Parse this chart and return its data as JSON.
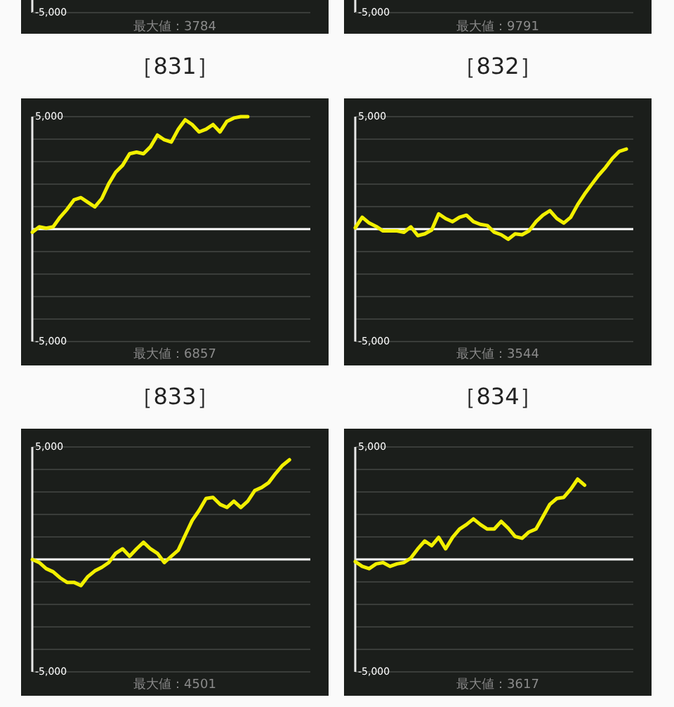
{
  "chart_data": [
    {
      "type": "other",
      "annotations": [
        "-5,000",
        "最大値：3784"
      ]
    },
    {
      "type": "other",
      "annotations": [
        "-5,000",
        "最大値：9791"
      ]
    },
    {
      "type": "line",
      "title": "［831］",
      "categories": [
        null,
        null,
        null,
        null,
        null,
        null,
        null,
        null,
        null,
        null,
        null,
        null,
        null,
        null,
        null,
        null,
        null,
        null,
        null,
        null,
        null,
        null,
        null,
        null,
        null,
        null,
        null,
        null,
        null,
        null,
        null,
        null,
        null,
        null,
        null,
        null,
        null,
        null,
        null,
        null,
        null
      ],
      "series": [
        {
          "color": "#f2f000",
          "values": [
            -140,
            100,
            40,
            100,
            530,
            880,
            1300,
            1400,
            1190,
            990,
            1360,
            2020,
            2530,
            2840,
            3350,
            3420,
            3350,
            3660,
            4180,
            3970,
            3870,
            4440,
            4860,
            4650,
            4320,
            4440,
            4650,
            4320,
            4790,
            4940,
            5000,
            5000,
            null,
            null,
            null,
            null,
            null,
            null,
            null,
            null,
            null
          ]
        }
      ],
      "ylim": [
        -5000,
        5000
      ],
      "yticks": [
        {
          "value": -5000,
          "label": "-5,000"
        },
        {
          "value": -4000,
          "label": null
        },
        {
          "value": -3000,
          "label": null
        },
        {
          "value": -2000,
          "label": null
        },
        {
          "value": -1000,
          "label": null
        },
        {
          "value": 0,
          "label": null
        },
        {
          "value": 1000,
          "label": null
        },
        {
          "value": 2000,
          "label": null
        },
        {
          "value": 3000,
          "label": null
        },
        {
          "value": 4000,
          "label": null
        },
        {
          "value": 5000,
          "label": "5,000"
        }
      ],
      "grid": "y",
      "tick_labels": "y",
      "ref_lines": [
        {
          "axis": "y",
          "value": 0,
          "color": "#ffffff"
        }
      ],
      "annotations": [
        "最大値：6857"
      ]
    },
    {
      "type": "line",
      "title": "［832］",
      "categories": [
        null,
        null,
        null,
        null,
        null,
        null,
        null,
        null,
        null,
        null,
        null,
        null,
        null,
        null,
        null,
        null,
        null,
        null,
        null,
        null,
        null,
        null,
        null,
        null,
        null,
        null,
        null,
        null,
        null,
        null,
        null,
        null,
        null,
        null,
        null,
        null,
        null,
        null,
        null,
        null,
        null
      ],
      "series": [
        {
          "color": "#f2f000",
          "values": [
            60,
            530,
            270,
            120,
            -80,
            -80,
            -80,
            -140,
            100,
            -290,
            -210,
            -40,
            680,
            470,
            330,
            530,
            620,
            330,
            210,
            160,
            -140,
            -250,
            -450,
            -210,
            -250,
            -80,
            330,
            620,
            820,
            470,
            270,
            530,
            1090,
            1560,
            1980,
            2390,
            2740,
            3150,
            3460,
            3560,
            null
          ]
        }
      ],
      "ylim": [
        -5000,
        5000
      ],
      "yticks": [
        {
          "value": -5000,
          "label": "-5,000"
        },
        {
          "value": -4000,
          "label": null
        },
        {
          "value": -3000,
          "label": null
        },
        {
          "value": -2000,
          "label": null
        },
        {
          "value": -1000,
          "label": null
        },
        {
          "value": 0,
          "label": null
        },
        {
          "value": 1000,
          "label": null
        },
        {
          "value": 2000,
          "label": null
        },
        {
          "value": 3000,
          "label": null
        },
        {
          "value": 4000,
          "label": null
        },
        {
          "value": 5000,
          "label": "5,000"
        }
      ],
      "grid": "y",
      "tick_labels": "y",
      "ref_lines": [
        {
          "axis": "y",
          "value": 0,
          "color": "#ffffff"
        }
      ],
      "annotations": [
        "最大値：3544"
      ]
    },
    {
      "type": "line",
      "title": "［833］",
      "categories": [
        null,
        null,
        null,
        null,
        null,
        null,
        null,
        null,
        null,
        null,
        null,
        null,
        null,
        null,
        null,
        null,
        null,
        null,
        null,
        null,
        null,
        null,
        null,
        null,
        null,
        null,
        null,
        null,
        null,
        null,
        null,
        null,
        null,
        null,
        null,
        null,
        null,
        null,
        null,
        null,
        null
      ],
      "series": [
        {
          "color": "#f2f000",
          "values": [
            0,
            -140,
            -410,
            -550,
            -820,
            -1020,
            -1020,
            -1160,
            -760,
            -510,
            -350,
            -140,
            270,
            470,
            140,
            470,
            760,
            470,
            270,
            -140,
            140,
            410,
            1080,
            1730,
            2180,
            2710,
            2760,
            2450,
            2310,
            2590,
            2310,
            2590,
            3060,
            3200,
            3410,
            3820,
            4180,
            4430,
            null,
            null,
            null
          ]
        }
      ],
      "ylim": [
        -5000,
        5000
      ],
      "yticks": [
        {
          "value": -5000,
          "label": "-5,000"
        },
        {
          "value": -4000,
          "label": null
        },
        {
          "value": -3000,
          "label": null
        },
        {
          "value": -2000,
          "label": null
        },
        {
          "value": -1000,
          "label": null
        },
        {
          "value": 0,
          "label": null
        },
        {
          "value": 1000,
          "label": null
        },
        {
          "value": 2000,
          "label": null
        },
        {
          "value": 3000,
          "label": null
        },
        {
          "value": 4000,
          "label": null
        },
        {
          "value": 5000,
          "label": "5,000"
        }
      ],
      "grid": "y",
      "tick_labels": "y",
      "ref_lines": [
        {
          "axis": "y",
          "value": 0,
          "color": "#ffffff"
        }
      ],
      "annotations": [
        "最大値：4501"
      ]
    },
    {
      "type": "line",
      "title": "［834］",
      "categories": [
        null,
        null,
        null,
        null,
        null,
        null,
        null,
        null,
        null,
        null,
        null,
        null,
        null,
        null,
        null,
        null,
        null,
        null,
        null,
        null,
        null,
        null,
        null,
        null,
        null,
        null,
        null,
        null,
        null,
        null,
        null,
        null,
        null,
        null,
        null,
        null,
        null,
        null,
        null,
        null,
        null
      ],
      "series": [
        {
          "color": "#f2f000",
          "values": [
            -100,
            -310,
            -410,
            -200,
            -140,
            -310,
            -200,
            -140,
            60,
            470,
            820,
            610,
            980,
            470,
            980,
            1350,
            1550,
            1800,
            1550,
            1350,
            1350,
            1690,
            1390,
            1020,
            940,
            1220,
            1350,
            1900,
            2450,
            2710,
            2760,
            3120,
            3570,
            3300,
            null,
            null,
            null,
            null,
            null,
            null,
            null
          ]
        }
      ],
      "ylim": [
        -5000,
        5000
      ],
      "yticks": [
        {
          "value": -5000,
          "label": "-5,000"
        },
        {
          "value": -4000,
          "label": null
        },
        {
          "value": -3000,
          "label": null
        },
        {
          "value": -2000,
          "label": null
        },
        {
          "value": -1000,
          "label": null
        },
        {
          "value": 0,
          "label": null
        },
        {
          "value": 1000,
          "label": null
        },
        {
          "value": 2000,
          "label": null
        },
        {
          "value": 3000,
          "label": null
        },
        {
          "value": 4000,
          "label": null
        },
        {
          "value": 5000,
          "label": "5,000"
        }
      ],
      "grid": "y",
      "tick_labels": "y",
      "ref_lines": [
        {
          "axis": "y",
          "value": 0,
          "color": "#ffffff"
        }
      ],
      "annotations": [
        "最大値：3617"
      ]
    }
  ]
}
